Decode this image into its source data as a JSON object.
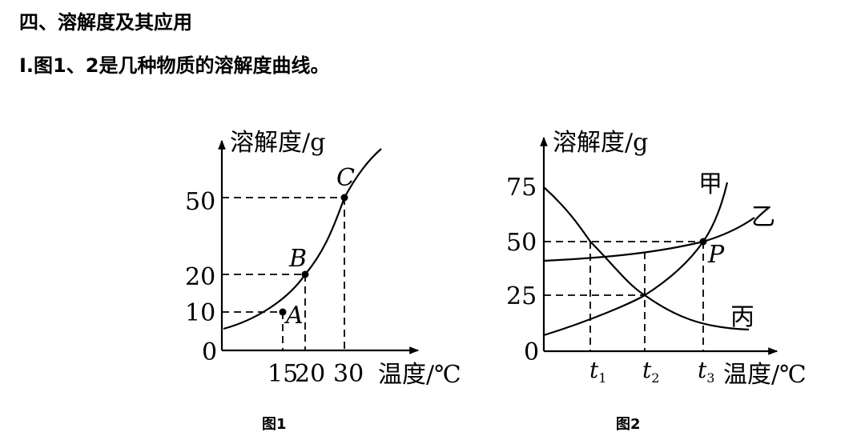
{
  "section_title": "四、溶解度及其应用",
  "intro_text": "I.图1、2是几种物质的溶解度曲线。",
  "chart_data": [
    {
      "type": "line",
      "caption": "图1",
      "ylabel": "溶解度/g",
      "xlabel": "温度/℃",
      "origin_label": "0",
      "xlim": [
        0,
        50
      ],
      "ylim": [
        0,
        60
      ],
      "x_ticks": [
        "15",
        "20",
        "30"
      ],
      "y_ticks": [
        "10",
        "20",
        "50"
      ],
      "series": [
        {
          "x": [
            0,
            5,
            10,
            15,
            20,
            25,
            30,
            35,
            40
          ],
          "y": [
            5,
            6.5,
            8,
            10,
            20,
            34,
            50,
            57,
            65
          ]
        }
      ],
      "points": [
        {
          "label": "A",
          "x": 15,
          "y": 10
        },
        {
          "label": "B",
          "x": 20,
          "y": 20
        },
        {
          "label": "C",
          "x": 30,
          "y": 50
        }
      ]
    },
    {
      "type": "line",
      "caption": "图2",
      "ylabel": "溶解度/g",
      "xlabel": "温度/℃",
      "origin_label": "0",
      "y_ticks": [
        "25",
        "50",
        "75"
      ],
      "x_ticks": [
        "t1",
        "t2",
        "t3"
      ],
      "series": [
        {
          "name": "甲",
          "curve": "rising steeply",
          "passes": [
            "(t2, 25)",
            "(t3, 50)"
          ]
        },
        {
          "name": "乙",
          "curve": "rising slowly",
          "passes": [
            "(t3, 50)"
          ]
        },
        {
          "name": "丙",
          "curve": "falling",
          "passes": [
            "(t1, 50)",
            "(t2, 25)"
          ]
        }
      ],
      "points": [
        {
          "label": "P",
          "x": "t3",
          "y": 50
        }
      ]
    }
  ]
}
